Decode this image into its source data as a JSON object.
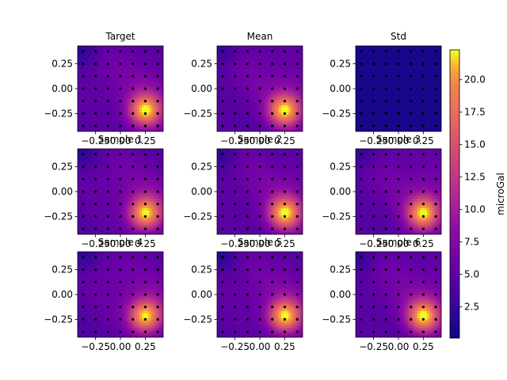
{
  "chart_data": {
    "type": "heatmap",
    "panels": [
      {
        "title": "Target",
        "field": "grav"
      },
      {
        "title": "Mean",
        "field": "grav"
      },
      {
        "title": "Std",
        "field": "std"
      },
      {
        "title": "Sample 1",
        "field": "grav"
      },
      {
        "title": "Sample 2",
        "field": "grav"
      },
      {
        "title": "Sample 3",
        "field": "grav"
      },
      {
        "title": "Sample 4",
        "field": "grav"
      },
      {
        "title": "Sample 5",
        "field": "grav"
      },
      {
        "title": "Sample 6",
        "field": "grav"
      }
    ],
    "x_ticks": [
      -0.25,
      0.0,
      0.25
    ],
    "y_ticks": [
      0.25,
      0.0,
      -0.25
    ],
    "x_tick_labels": [
      "−0.25",
      "0.00",
      "0.25"
    ],
    "y_tick_labels": [
      "0.25",
      "0.00",
      "−0.25"
    ],
    "xlim": [
      -0.43,
      0.43
    ],
    "ylim": [
      -0.43,
      0.43
    ],
    "colorbar": {
      "label": "microGal",
      "ticks": [
        2.5,
        5.0,
        7.5,
        10.0,
        12.5,
        15.0,
        17.5,
        20.0
      ],
      "tick_labels": [
        "2.5",
        "5.0",
        "7.5",
        "10.0",
        "12.5",
        "15.0",
        "17.5",
        "20.0"
      ],
      "range": [
        0.1,
        22.3
      ],
      "colormap": "plasma"
    },
    "sensor_grid": {
      "x": [
        -0.375,
        -0.25,
        -0.125,
        0.0,
        0.125,
        0.25,
        0.375
      ],
      "y": [
        -0.375,
        -0.25,
        -0.125,
        0.0,
        0.125,
        0.25,
        0.375
      ]
    }
  }
}
